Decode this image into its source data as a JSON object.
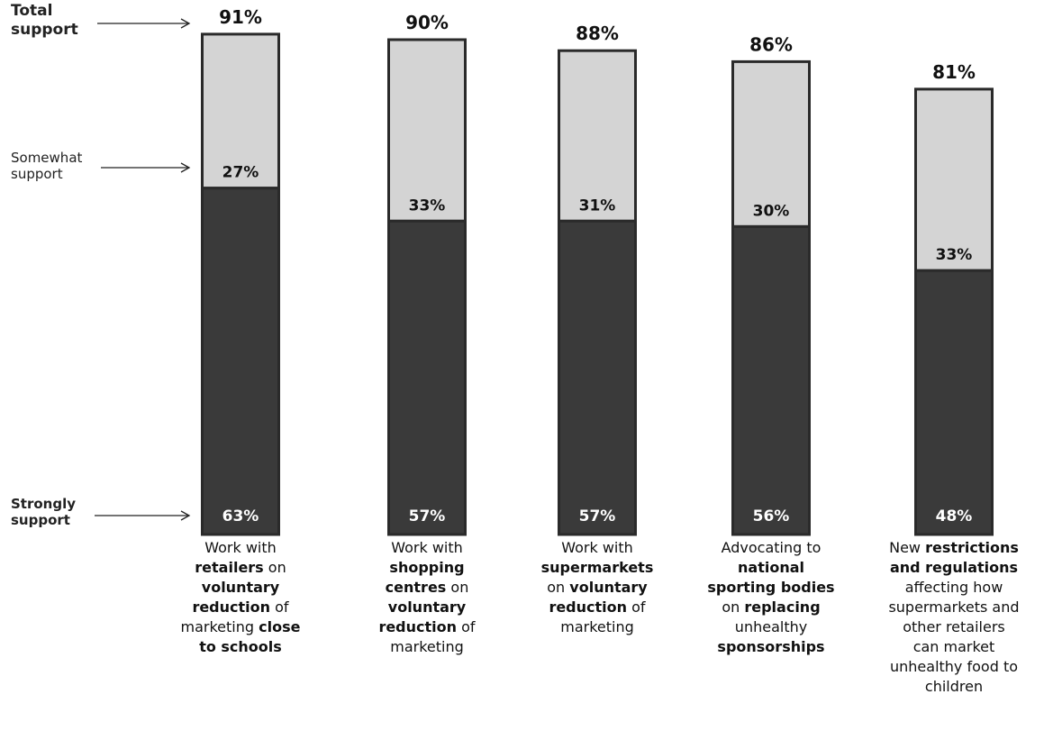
{
  "legend": {
    "total": [
      "Total",
      "support"
    ],
    "somewhat": [
      "Somewhat",
      "support"
    ],
    "strongly": [
      "Strongly",
      "support"
    ]
  },
  "colors": {
    "strongly": "#3a3a3a",
    "somewhat": "#d4d4d4",
    "outline": "#2a2a2a"
  },
  "chart_data": {
    "type": "bar",
    "stacked": true,
    "ylim": [
      0,
      100
    ],
    "categories": [
      "Work with retailers on voluntary reduction of marketing close to schools",
      "Work with shopping centres on voluntary reduction of marketing",
      "Work with supermarkets on voluntary reduction of marketing",
      "Advocating to national sporting bodies on replacing unhealthy sponsorships",
      "New restrictions and regulations affecting how supermarkets and other retailers can market unhealthy food to children"
    ],
    "series": [
      {
        "name": "Strongly support",
        "values": [
          63,
          57,
          57,
          56,
          48
        ]
      },
      {
        "name": "Somewhat support",
        "values": [
          27,
          33,
          31,
          30,
          33
        ]
      }
    ],
    "totals": [
      91,
      90,
      88,
      86,
      81
    ],
    "labels": {
      "strongly": [
        "63%",
        "57%",
        "57%",
        "56%",
        "48%"
      ],
      "somewhat": [
        "27%",
        "33%",
        "31%",
        "30%",
        "33%"
      ],
      "total": [
        "91%",
        "90%",
        "88%",
        "86%",
        "81%"
      ]
    },
    "category_label_runs": [
      [
        [
          "Work with",
          false
        ],
        [
          "\n",
          false
        ],
        [
          "retailers",
          true
        ],
        [
          " on",
          false
        ],
        [
          "\n",
          false
        ],
        [
          "voluntary",
          true
        ],
        [
          "\n",
          false
        ],
        [
          "reduction",
          true
        ],
        [
          " of",
          false
        ],
        [
          "\n",
          false
        ],
        [
          "marketing ",
          false
        ],
        [
          "close",
          true
        ],
        [
          "\n",
          false
        ],
        [
          "to schools",
          true
        ]
      ],
      [
        [
          "Work with",
          false
        ],
        [
          "\n",
          false
        ],
        [
          "shopping",
          true
        ],
        [
          "\n",
          false
        ],
        [
          "centres",
          true
        ],
        [
          " on",
          false
        ],
        [
          "\n",
          false
        ],
        [
          "voluntary",
          true
        ],
        [
          "\n",
          false
        ],
        [
          "reduction",
          true
        ],
        [
          " of",
          false
        ],
        [
          "\n",
          false
        ],
        [
          "marketing",
          false
        ]
      ],
      [
        [
          "Work with",
          false
        ],
        [
          "\n",
          false
        ],
        [
          "supermarkets",
          true
        ],
        [
          "\n",
          false
        ],
        [
          "on ",
          false
        ],
        [
          "voluntary",
          true
        ],
        [
          "\n",
          false
        ],
        [
          "reduction",
          true
        ],
        [
          " of",
          false
        ],
        [
          "\n",
          false
        ],
        [
          "marketing",
          false
        ]
      ],
      [
        [
          "Advocating to",
          false
        ],
        [
          "\n",
          false
        ],
        [
          "national",
          true
        ],
        [
          "\n",
          false
        ],
        [
          "sporting bodies",
          true
        ],
        [
          "\n",
          false
        ],
        [
          "on ",
          false
        ],
        [
          "replacing",
          true
        ],
        [
          "\n",
          false
        ],
        [
          "unhealthy",
          false
        ],
        [
          "\n",
          false
        ],
        [
          "sponsorships",
          true
        ]
      ],
      [
        [
          "New ",
          false
        ],
        [
          "restrictions",
          true
        ],
        [
          "\n",
          false
        ],
        [
          "and regulations",
          true
        ],
        [
          "\n",
          false
        ],
        [
          "affecting how",
          false
        ],
        [
          "\n",
          false
        ],
        [
          "supermarkets and",
          false
        ],
        [
          "\n",
          false
        ],
        [
          "other retailers",
          false
        ],
        [
          "\n",
          false
        ],
        [
          "can market",
          false
        ],
        [
          "\n",
          false
        ],
        [
          "unhealthy food to",
          false
        ],
        [
          "\n",
          false
        ],
        [
          "children",
          false
        ]
      ]
    ]
  }
}
